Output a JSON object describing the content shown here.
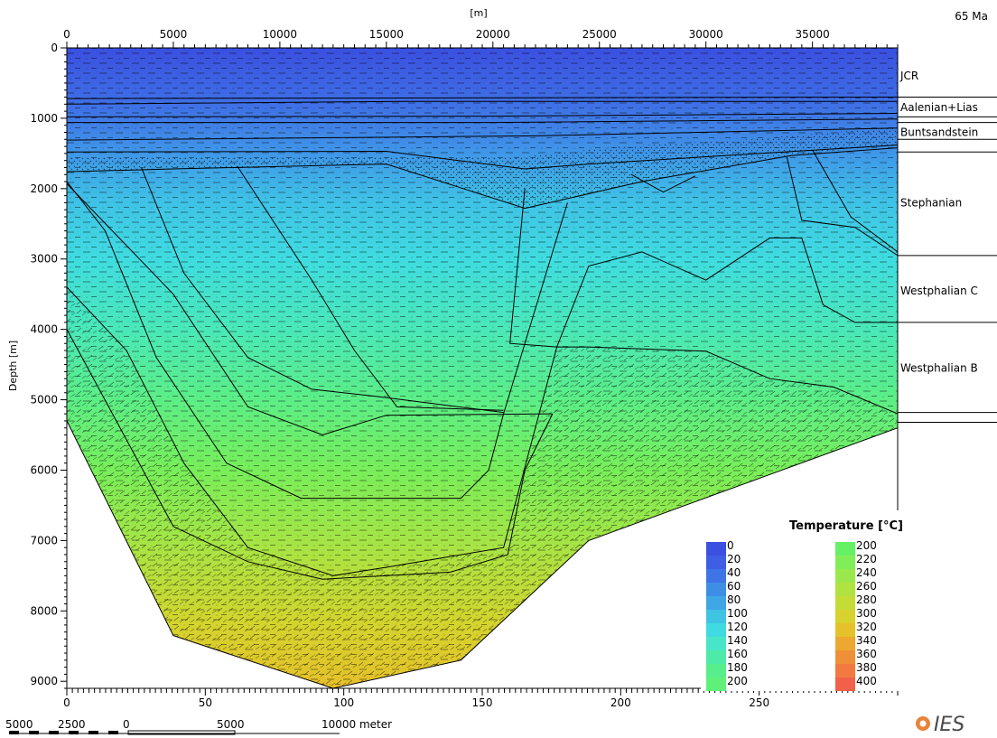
{
  "age_label": "65 Ma",
  "top_axis_unit": "[m]",
  "scalebar_label": "10000 meter",
  "logo": "IES",
  "legend": {
    "title": "Temperature [°C]",
    "columns": [
      {
        "entries": [
          {
            "label": "0",
            "color": "#3b50e0"
          },
          {
            "label": "20",
            "color": "#3e5ee4"
          },
          {
            "label": "40",
            "color": "#3f74e6"
          },
          {
            "label": "60",
            "color": "#3f8ee6"
          },
          {
            "label": "80",
            "color": "#3fa7e6"
          },
          {
            "label": "100",
            "color": "#3fc4e4"
          },
          {
            "label": "120",
            "color": "#40dbe0"
          },
          {
            "label": "140",
            "color": "#48e6c8"
          },
          {
            "label": "160",
            "color": "#4eeaa8"
          },
          {
            "label": "180",
            "color": "#57ee8c"
          },
          {
            "label": "200",
            "color": "#5ff07a"
          }
        ]
      },
      {
        "entries": [
          {
            "label": "200",
            "color": "#66f066"
          },
          {
            "label": "220",
            "color": "#82ee57"
          },
          {
            "label": "240",
            "color": "#9ae84c"
          },
          {
            "label": "260",
            "color": "#b0e240"
          },
          {
            "label": "280",
            "color": "#c4dc36"
          },
          {
            "label": "300",
            "color": "#d8d22e"
          },
          {
            "label": "320",
            "color": "#e6c22a"
          },
          {
            "label": "340",
            "color": "#eca830"
          },
          {
            "label": "360",
            "color": "#ef9038"
          },
          {
            "label": "380",
            "color": "#f27a40"
          },
          {
            "label": "400",
            "color": "#f2604a"
          }
        ]
      }
    ]
  },
  "chart_data": {
    "type": "area",
    "ylabel": "Depth [m]",
    "x_top": {
      "label": "[m]",
      "range": [
        0,
        39000
      ],
      "ticks": [
        "0",
        "5000",
        "10000",
        "15000",
        "20000",
        "25000",
        "30000",
        "35000"
      ]
    },
    "x_bottom": {
      "range": [
        0,
        300
      ],
      "ticks": [
        "0",
        "50",
        "100",
        "150",
        "200",
        "250"
      ]
    },
    "y": {
      "range": [
        0,
        9100
      ],
      "ticks": [
        "0",
        "1000",
        "2000",
        "3000",
        "4000",
        "5000",
        "6000",
        "7000",
        "8000",
        "9000"
      ],
      "inverted": true
    },
    "layers": [
      {
        "name": "JCR",
        "label_depth": 400
      },
      {
        "name": "Aalenian+Lias",
        "label_depth": 850
      },
      {
        "name": "Buntsandstein",
        "label_depth": 1200
      },
      {
        "name": "Stephanian",
        "label_depth": 2200
      },
      {
        "name": "Westphalian C",
        "label_depth": 3450
      },
      {
        "name": "Westphalian B",
        "label_depth": 4550
      }
    ],
    "layer_boundaries_right_depth": [
      700,
      980,
      1060,
      1300,
      1480,
      2950,
      3900,
      5180,
      5320
    ],
    "temperature_range_c": [
      0,
      400
    ],
    "basement_outline_x_depth": [
      [
        0,
        5300
      ],
      [
        5000,
        8350
      ],
      [
        12500,
        9100
      ],
      [
        18500,
        8700
      ],
      [
        24500,
        7000
      ],
      [
        39000,
        5400
      ]
    ]
  }
}
